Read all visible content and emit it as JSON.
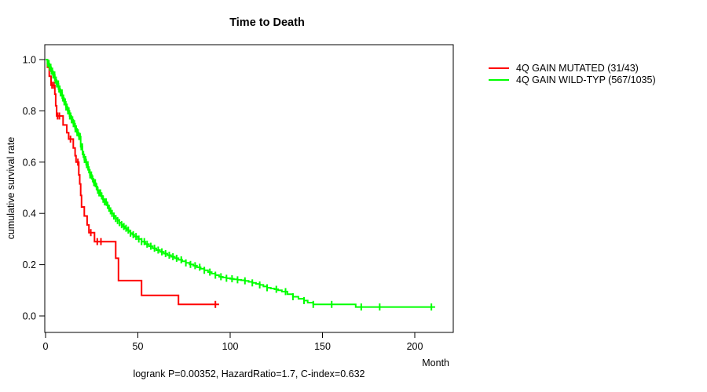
{
  "title": "Time to Death",
  "axes": {
    "x": {
      "label": "Month",
      "tick_values": [
        0,
        50,
        100,
        150,
        200
      ],
      "tick_labels": [
        "0",
        "50",
        "100",
        "150",
        "200"
      ]
    },
    "y": {
      "label": "cumulative survival rate",
      "tick_values": [
        0,
        0.2,
        0.4,
        0.6,
        0.8,
        1.0
      ],
      "tick_labels": [
        "0.0",
        "0.2",
        "0.4",
        "0.6",
        "0.8",
        "1.0"
      ]
    }
  },
  "legend": {
    "items": [
      {
        "label": "4Q GAIN MUTATED (31/43)",
        "color": "#ff0000"
      },
      {
        "label": "4Q GAIN WILD-TYP (567/1035)",
        "color": "#00ff00"
      }
    ]
  },
  "footer": {
    "annotation": "logrank P=0.00352, HazardRatio=1.7, C-index=0.632"
  },
  "chart_data": {
    "type": "line",
    "subtype": "kaplan-meier-step-curves",
    "title": "Time to Death",
    "xlabel": "Month",
    "ylabel": "cumulative survival rate",
    "xlim": [
      0,
      220
    ],
    "ylim": [
      0,
      1
    ],
    "grid": false,
    "legend_position": "right",
    "series": [
      {
        "name": "4Q GAIN MUTATED (31/43)",
        "color": "#ff0000",
        "end_time": 94,
        "steps": [
          [
            0,
            1.0
          ],
          [
            1,
            0.97
          ],
          [
            2,
            0.935
          ],
          [
            3,
            0.9
          ],
          [
            5,
            0.865
          ],
          [
            5.5,
            0.82
          ],
          [
            6,
            0.78
          ],
          [
            9.5,
            0.745
          ],
          [
            11.5,
            0.715
          ],
          [
            12.5,
            0.69
          ],
          [
            15,
            0.655
          ],
          [
            16,
            0.625
          ],
          [
            16.5,
            0.6
          ],
          [
            18,
            0.55
          ],
          [
            18.5,
            0.515
          ],
          [
            19,
            0.47
          ],
          [
            19.5,
            0.425
          ],
          [
            21,
            0.39
          ],
          [
            22.5,
            0.355
          ],
          [
            23.5,
            0.325
          ],
          [
            26.5,
            0.29
          ],
          [
            38,
            0.225
          ],
          [
            39.5,
            0.138
          ],
          [
            52,
            0.08
          ],
          [
            72,
            0.045
          ]
        ],
        "censor_times": [
          3.5,
          4.5,
          6.5,
          7.5,
          13.5,
          17.5,
          24.5,
          28,
          30,
          92
        ]
      },
      {
        "name": "4Q GAIN WILD-TYP (567/1035)",
        "color": "#00ff00",
        "end_time": 211,
        "steps": [
          [
            0,
            1.0
          ],
          [
            1,
            0.985
          ],
          [
            2,
            0.97
          ],
          [
            3,
            0.955
          ],
          [
            4,
            0.94
          ],
          [
            5,
            0.92
          ],
          [
            6,
            0.905
          ],
          [
            7,
            0.885
          ],
          [
            8,
            0.87
          ],
          [
            9,
            0.85
          ],
          [
            10,
            0.835
          ],
          [
            11,
            0.815
          ],
          [
            12,
            0.8
          ],
          [
            13,
            0.78
          ],
          [
            14,
            0.765
          ],
          [
            15,
            0.75
          ],
          [
            16,
            0.73
          ],
          [
            17,
            0.715
          ],
          [
            18,
            0.7
          ],
          [
            19,
            0.66
          ],
          [
            20,
            0.63
          ],
          [
            21,
            0.61
          ],
          [
            22,
            0.59
          ],
          [
            23,
            0.57
          ],
          [
            24,
            0.55
          ],
          [
            25,
            0.535
          ],
          [
            26,
            0.52
          ],
          [
            27,
            0.505
          ],
          [
            28,
            0.49
          ],
          [
            29,
            0.48
          ],
          [
            30,
            0.468
          ],
          [
            31,
            0.455
          ],
          [
            32,
            0.445
          ],
          [
            33,
            0.432
          ],
          [
            34,
            0.42
          ],
          [
            35,
            0.41
          ],
          [
            36,
            0.4
          ],
          [
            37,
            0.39
          ],
          [
            38,
            0.38
          ],
          [
            39,
            0.372
          ],
          [
            40,
            0.364
          ],
          [
            41,
            0.356
          ],
          [
            42,
            0.349
          ],
          [
            43,
            0.342
          ],
          [
            44,
            0.335
          ],
          [
            45,
            0.329
          ],
          [
            46,
            0.323
          ],
          [
            47,
            0.317
          ],
          [
            48,
            0.31
          ],
          [
            50,
            0.3
          ],
          [
            52,
            0.29
          ],
          [
            54,
            0.28
          ],
          [
            56,
            0.272
          ],
          [
            58,
            0.264
          ],
          [
            60,
            0.257
          ],
          [
            62,
            0.25
          ],
          [
            64,
            0.243
          ],
          [
            66,
            0.237
          ],
          [
            68,
            0.231
          ],
          [
            70,
            0.225
          ],
          [
            72,
            0.219
          ],
          [
            74,
            0.213
          ],
          [
            76,
            0.207
          ],
          [
            78,
            0.201
          ],
          [
            80,
            0.196
          ],
          [
            82,
            0.19
          ],
          [
            84,
            0.184
          ],
          [
            86,
            0.178
          ],
          [
            88,
            0.171
          ],
          [
            90,
            0.165
          ],
          [
            92,
            0.159
          ],
          [
            94,
            0.153
          ],
          [
            96,
            0.15
          ],
          [
            98,
            0.147
          ],
          [
            100,
            0.145
          ],
          [
            102,
            0.143
          ],
          [
            104,
            0.141
          ],
          [
            106,
            0.139
          ],
          [
            108,
            0.137
          ],
          [
            110,
            0.133
          ],
          [
            112,
            0.129
          ],
          [
            114,
            0.125
          ],
          [
            116,
            0.121
          ],
          [
            118,
            0.115
          ],
          [
            120,
            0.11
          ],
          [
            122,
            0.107
          ],
          [
            124,
            0.104
          ],
          [
            126,
            0.1
          ],
          [
            128,
            0.095
          ],
          [
            131,
            0.085
          ],
          [
            134,
            0.075
          ],
          [
            137,
            0.067
          ],
          [
            140,
            0.06
          ],
          [
            142,
            0.052
          ],
          [
            145,
            0.045
          ],
          [
            168,
            0.035
          ]
        ],
        "censor_times": [
          1.2,
          1.8,
          2.3,
          2.8,
          3.2,
          3.7,
          4.1,
          4.5,
          4.9,
          5.3,
          5.7,
          6.1,
          6.5,
          6.9,
          7.3,
          7.7,
          8.1,
          8.5,
          8.9,
          9.3,
          9.7,
          10.1,
          10.6,
          11.1,
          11.6,
          12.1,
          12.6,
          13.1,
          13.6,
          14.1,
          14.6,
          15.1,
          15.6,
          16.1,
          16.6,
          17.1,
          17.6,
          18.1,
          18.7,
          19.3,
          19.9,
          20.5,
          21.1,
          21.7,
          22.3,
          22.9,
          23.5,
          24.1,
          24.8,
          25.5,
          26.2,
          26.9,
          27.6,
          28.3,
          29,
          29.7,
          30.4,
          31.2,
          32,
          32.8,
          33.6,
          34.4,
          35.2,
          36,
          37,
          38,
          39,
          40,
          41.2,
          42.4,
          43.6,
          44.8,
          46,
          47.5,
          49,
          50.5,
          52,
          53.5,
          55,
          57,
          59,
          61,
          63,
          65,
          67,
          69,
          71,
          73.5,
          76,
          78.5,
          81,
          83.5,
          86,
          89,
          92,
          95,
          98,
          101,
          104,
          108,
          112,
          116,
          120,
          125,
          130,
          134,
          140,
          145,
          155,
          171,
          181,
          209
        ]
      }
    ]
  }
}
